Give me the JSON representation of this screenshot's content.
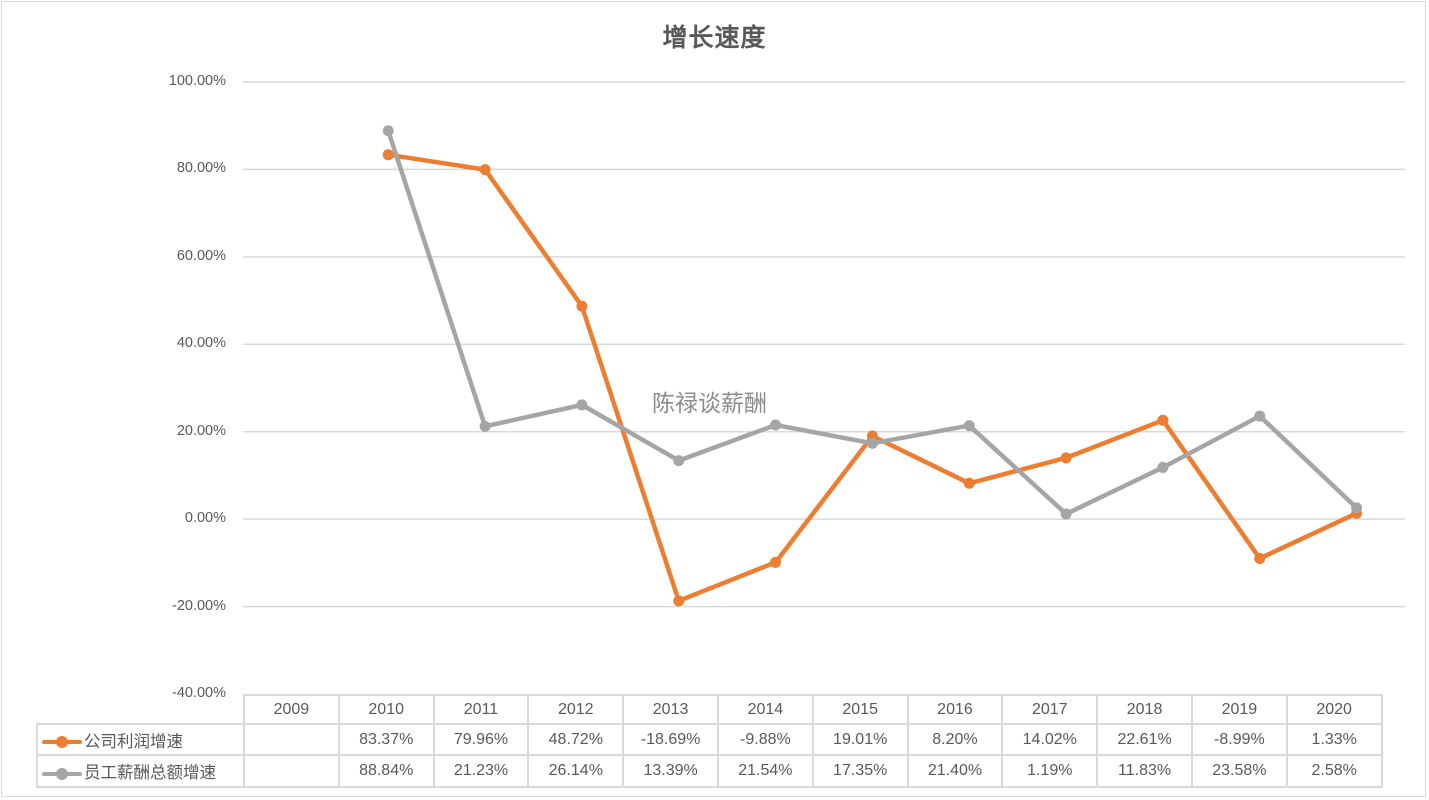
{
  "chart_data": {
    "type": "line",
    "title": "增长速度",
    "watermark": "陈禄谈薪酬",
    "categories": [
      "2009",
      "2010",
      "2011",
      "2012",
      "2013",
      "2014",
      "2015",
      "2016",
      "2017",
      "2018",
      "2019",
      "2020"
    ],
    "series": [
      {
        "name": "公司利润增速",
        "color": "#ed7d31",
        "values": [
          null,
          83.37,
          79.96,
          48.72,
          -18.69,
          -9.88,
          19.01,
          8.2,
          14.02,
          22.61,
          -8.99,
          1.33
        ],
        "labels": [
          "",
          "83.37%",
          "79.96%",
          "48.72%",
          "-18.69%",
          "-9.88%",
          "19.01%",
          "8.20%",
          "14.02%",
          "22.61%",
          "-8.99%",
          "1.33%"
        ]
      },
      {
        "name": "员工薪酬总额增速",
        "color": "#a5a5a5",
        "values": [
          null,
          88.84,
          21.23,
          26.14,
          13.39,
          21.54,
          17.35,
          21.4,
          1.19,
          11.83,
          23.58,
          2.58
        ],
        "labels": [
          "",
          "88.84%",
          "21.23%",
          "26.14%",
          "13.39%",
          "21.54%",
          "17.35%",
          "21.40%",
          "1.19%",
          "11.83%",
          "23.58%",
          "2.58%"
        ]
      }
    ],
    "xlabel": "",
    "ylabel": "",
    "ylim": [
      -40,
      100
    ],
    "yticks": [
      "100.00%",
      "80.00%",
      "60.00%",
      "40.00%",
      "20.00%",
      "0.00%",
      "-20.00%",
      "-40.00%"
    ],
    "grid": true,
    "legend_position": "data-table"
  }
}
